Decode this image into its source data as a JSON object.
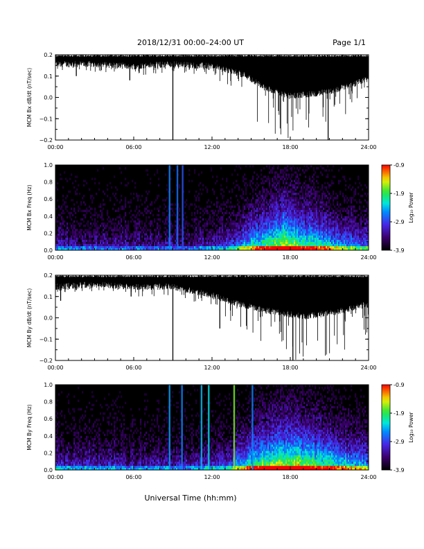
{
  "header": {
    "date_range": "2018/12/31   00:00–24:00 UT",
    "page": "Page 1/1"
  },
  "footer": {
    "xlabel": "Universal Time (hh:mm)"
  },
  "chart_data": [
    {
      "type": "line",
      "ylabel": "MCM Bx dB/dt (nT/sec)",
      "x_range_hours": [
        0,
        24
      ],
      "x_ticks": [
        "00:00",
        "06:00",
        "12:00",
        "18:00",
        "24:00"
      ],
      "ylim": [
        -0.2,
        0.2
      ],
      "y_ticks": [
        "0.2",
        "0.1",
        "0.0",
        "−0.1",
        "−0.2"
      ],
      "y_tick_values": [
        0.2,
        0.1,
        0.0,
        -0.1,
        -0.2
      ],
      "series_color": "#000000",
      "profile": [
        {
          "t": 0,
          "upper": 0.2,
          "lower": 0.15,
          "spike": 0.12
        },
        {
          "t": 3,
          "upper": 0.2,
          "lower": 0.15,
          "spike": 0.12
        },
        {
          "t": 6,
          "upper": 0.2,
          "lower": 0.14,
          "spike": 0.1
        },
        {
          "t": 9,
          "upper": 0.2,
          "lower": 0.15,
          "spike": 0.12
        },
        {
          "t": 12,
          "upper": 0.2,
          "lower": 0.14,
          "spike": 0.1
        },
        {
          "t": 14.5,
          "upper": 0.2,
          "lower": 0.1,
          "spike": 0.0
        },
        {
          "t": 16,
          "upper": 0.2,
          "lower": 0.04,
          "spike": -0.2
        },
        {
          "t": 18,
          "upper": 0.2,
          "lower": 0.0,
          "spike": -0.2
        },
        {
          "t": 21,
          "upper": 0.2,
          "lower": 0.02,
          "spike": -0.2
        },
        {
          "t": 24,
          "upper": 0.2,
          "lower": 0.08,
          "spike": 0.05
        }
      ],
      "events": [
        {
          "t": 1.6,
          "min": 0.1
        },
        {
          "t": 5.7,
          "min": 0.08
        },
        {
          "t": 9.0,
          "min": -0.2
        },
        {
          "t": 20.9,
          "min": -0.2
        }
      ]
    },
    {
      "type": "heatmap",
      "ylabel": "MCM Bx Freq (Hz)",
      "x_range_hours": [
        0,
        24
      ],
      "x_ticks": [
        "00:00",
        "06:00",
        "12:00",
        "18:00",
        "24:00"
      ],
      "ylim": [
        0.0,
        1.0
      ],
      "y_ticks": [
        "1.0",
        "0.8",
        "0.6",
        "0.4",
        "0.2",
        "0.0"
      ],
      "y_tick_values": [
        1.0,
        0.8,
        0.6,
        0.4,
        0.2,
        0.0
      ],
      "colorbar": {
        "label": "Log₁₀ Power",
        "range": [
          -3.9,
          -0.9
        ],
        "ticks": [
          "-0.9",
          "-1.9",
          "-2.9",
          "-3.9"
        ],
        "tick_values": [
          -0.9,
          -1.9,
          -2.9,
          -3.9
        ]
      },
      "activity": [
        {
          "t": 0,
          "level": 0.3
        },
        {
          "t": 6,
          "level": 0.25
        },
        {
          "t": 10,
          "level": 0.25
        },
        {
          "t": 13,
          "level": 0.35
        },
        {
          "t": 15,
          "level": 0.7
        },
        {
          "t": 17.5,
          "level": 0.95
        },
        {
          "t": 19,
          "level": 0.85
        },
        {
          "t": 22,
          "level": 0.6
        },
        {
          "t": 24,
          "level": 0.5
        }
      ],
      "bursts": [
        {
          "t": 8.75,
          "power": -2.6
        },
        {
          "t": 9.35,
          "power": -2.7
        },
        {
          "t": 9.75,
          "power": -2.8
        }
      ]
    },
    {
      "type": "line",
      "ylabel": "MCM By dB/dt (nT/sec)",
      "x_range_hours": [
        0,
        24
      ],
      "x_ticks": [
        "00:00",
        "06:00",
        "12:00",
        "18:00",
        "24:00"
      ],
      "ylim": [
        -0.2,
        0.2
      ],
      "y_ticks": [
        "0.2",
        "0.1",
        "0.0",
        "−0.1",
        "−0.2"
      ],
      "y_tick_values": [
        0.2,
        0.1,
        0.0,
        -0.1,
        -0.2
      ],
      "series_color": "#000000",
      "profile": [
        {
          "t": 0,
          "upper": 0.2,
          "lower": 0.14,
          "spike": 0.12
        },
        {
          "t": 3,
          "upper": 0.2,
          "lower": 0.15,
          "spike": 0.12
        },
        {
          "t": 6,
          "upper": 0.2,
          "lower": 0.14,
          "spike": 0.1
        },
        {
          "t": 9,
          "upper": 0.2,
          "lower": 0.14,
          "spike": 0.1
        },
        {
          "t": 12,
          "upper": 0.2,
          "lower": 0.1,
          "spike": 0.05
        },
        {
          "t": 14,
          "upper": 0.2,
          "lower": 0.06,
          "spike": -0.05
        },
        {
          "t": 16,
          "upper": 0.2,
          "lower": 0.03,
          "spike": -0.2
        },
        {
          "t": 19,
          "upper": 0.2,
          "lower": 0.0,
          "spike": -0.2
        },
        {
          "t": 21.5,
          "upper": 0.2,
          "lower": 0.02,
          "spike": -0.2
        },
        {
          "t": 24,
          "upper": 0.2,
          "lower": 0.06,
          "spike": -0.1
        }
      ],
      "events": [
        {
          "t": 0.4,
          "min": 0.08
        },
        {
          "t": 5.8,
          "min": 0.1
        },
        {
          "t": 9.0,
          "min": -0.2
        },
        {
          "t": 12.6,
          "min": -0.05
        },
        {
          "t": 18.2,
          "min": -0.2
        }
      ]
    },
    {
      "type": "heatmap",
      "ylabel": "MCM By Freq (Hz)",
      "x_range_hours": [
        0,
        24
      ],
      "x_ticks": [
        "00:00",
        "06:00",
        "12:00",
        "18:00",
        "24:00"
      ],
      "ylim": [
        0.0,
        1.0
      ],
      "y_ticks": [
        "1.0",
        "0.8",
        "0.6",
        "0.4",
        "0.2",
        "0.0"
      ],
      "y_tick_values": [
        1.0,
        0.8,
        0.6,
        0.4,
        0.2,
        0.0
      ],
      "colorbar": {
        "label": "Log₁₀ Power",
        "range": [
          -3.9,
          -0.9
        ],
        "ticks": [
          "-0.9",
          "-1.9",
          "-2.9",
          "-3.9"
        ],
        "tick_values": [
          -0.9,
          -1.9,
          -2.9,
          -3.9
        ]
      },
      "activity": [
        {
          "t": 0,
          "level": 0.35
        },
        {
          "t": 6,
          "level": 0.3
        },
        {
          "t": 10,
          "level": 0.3
        },
        {
          "t": 13,
          "level": 0.4
        },
        {
          "t": 15.5,
          "level": 0.85
        },
        {
          "t": 18,
          "level": 0.95
        },
        {
          "t": 20,
          "level": 0.85
        },
        {
          "t": 22,
          "level": 0.7
        },
        {
          "t": 24,
          "level": 0.6
        }
      ],
      "bursts": [
        {
          "t": 8.75,
          "power": -2.5
        },
        {
          "t": 9.7,
          "power": -2.6
        },
        {
          "t": 11.2,
          "power": -2.4
        },
        {
          "t": 11.75,
          "power": -2.3
        },
        {
          "t": 13.7,
          "power": -1.7
        },
        {
          "t": 15.1,
          "power": -2.6
        }
      ]
    }
  ]
}
